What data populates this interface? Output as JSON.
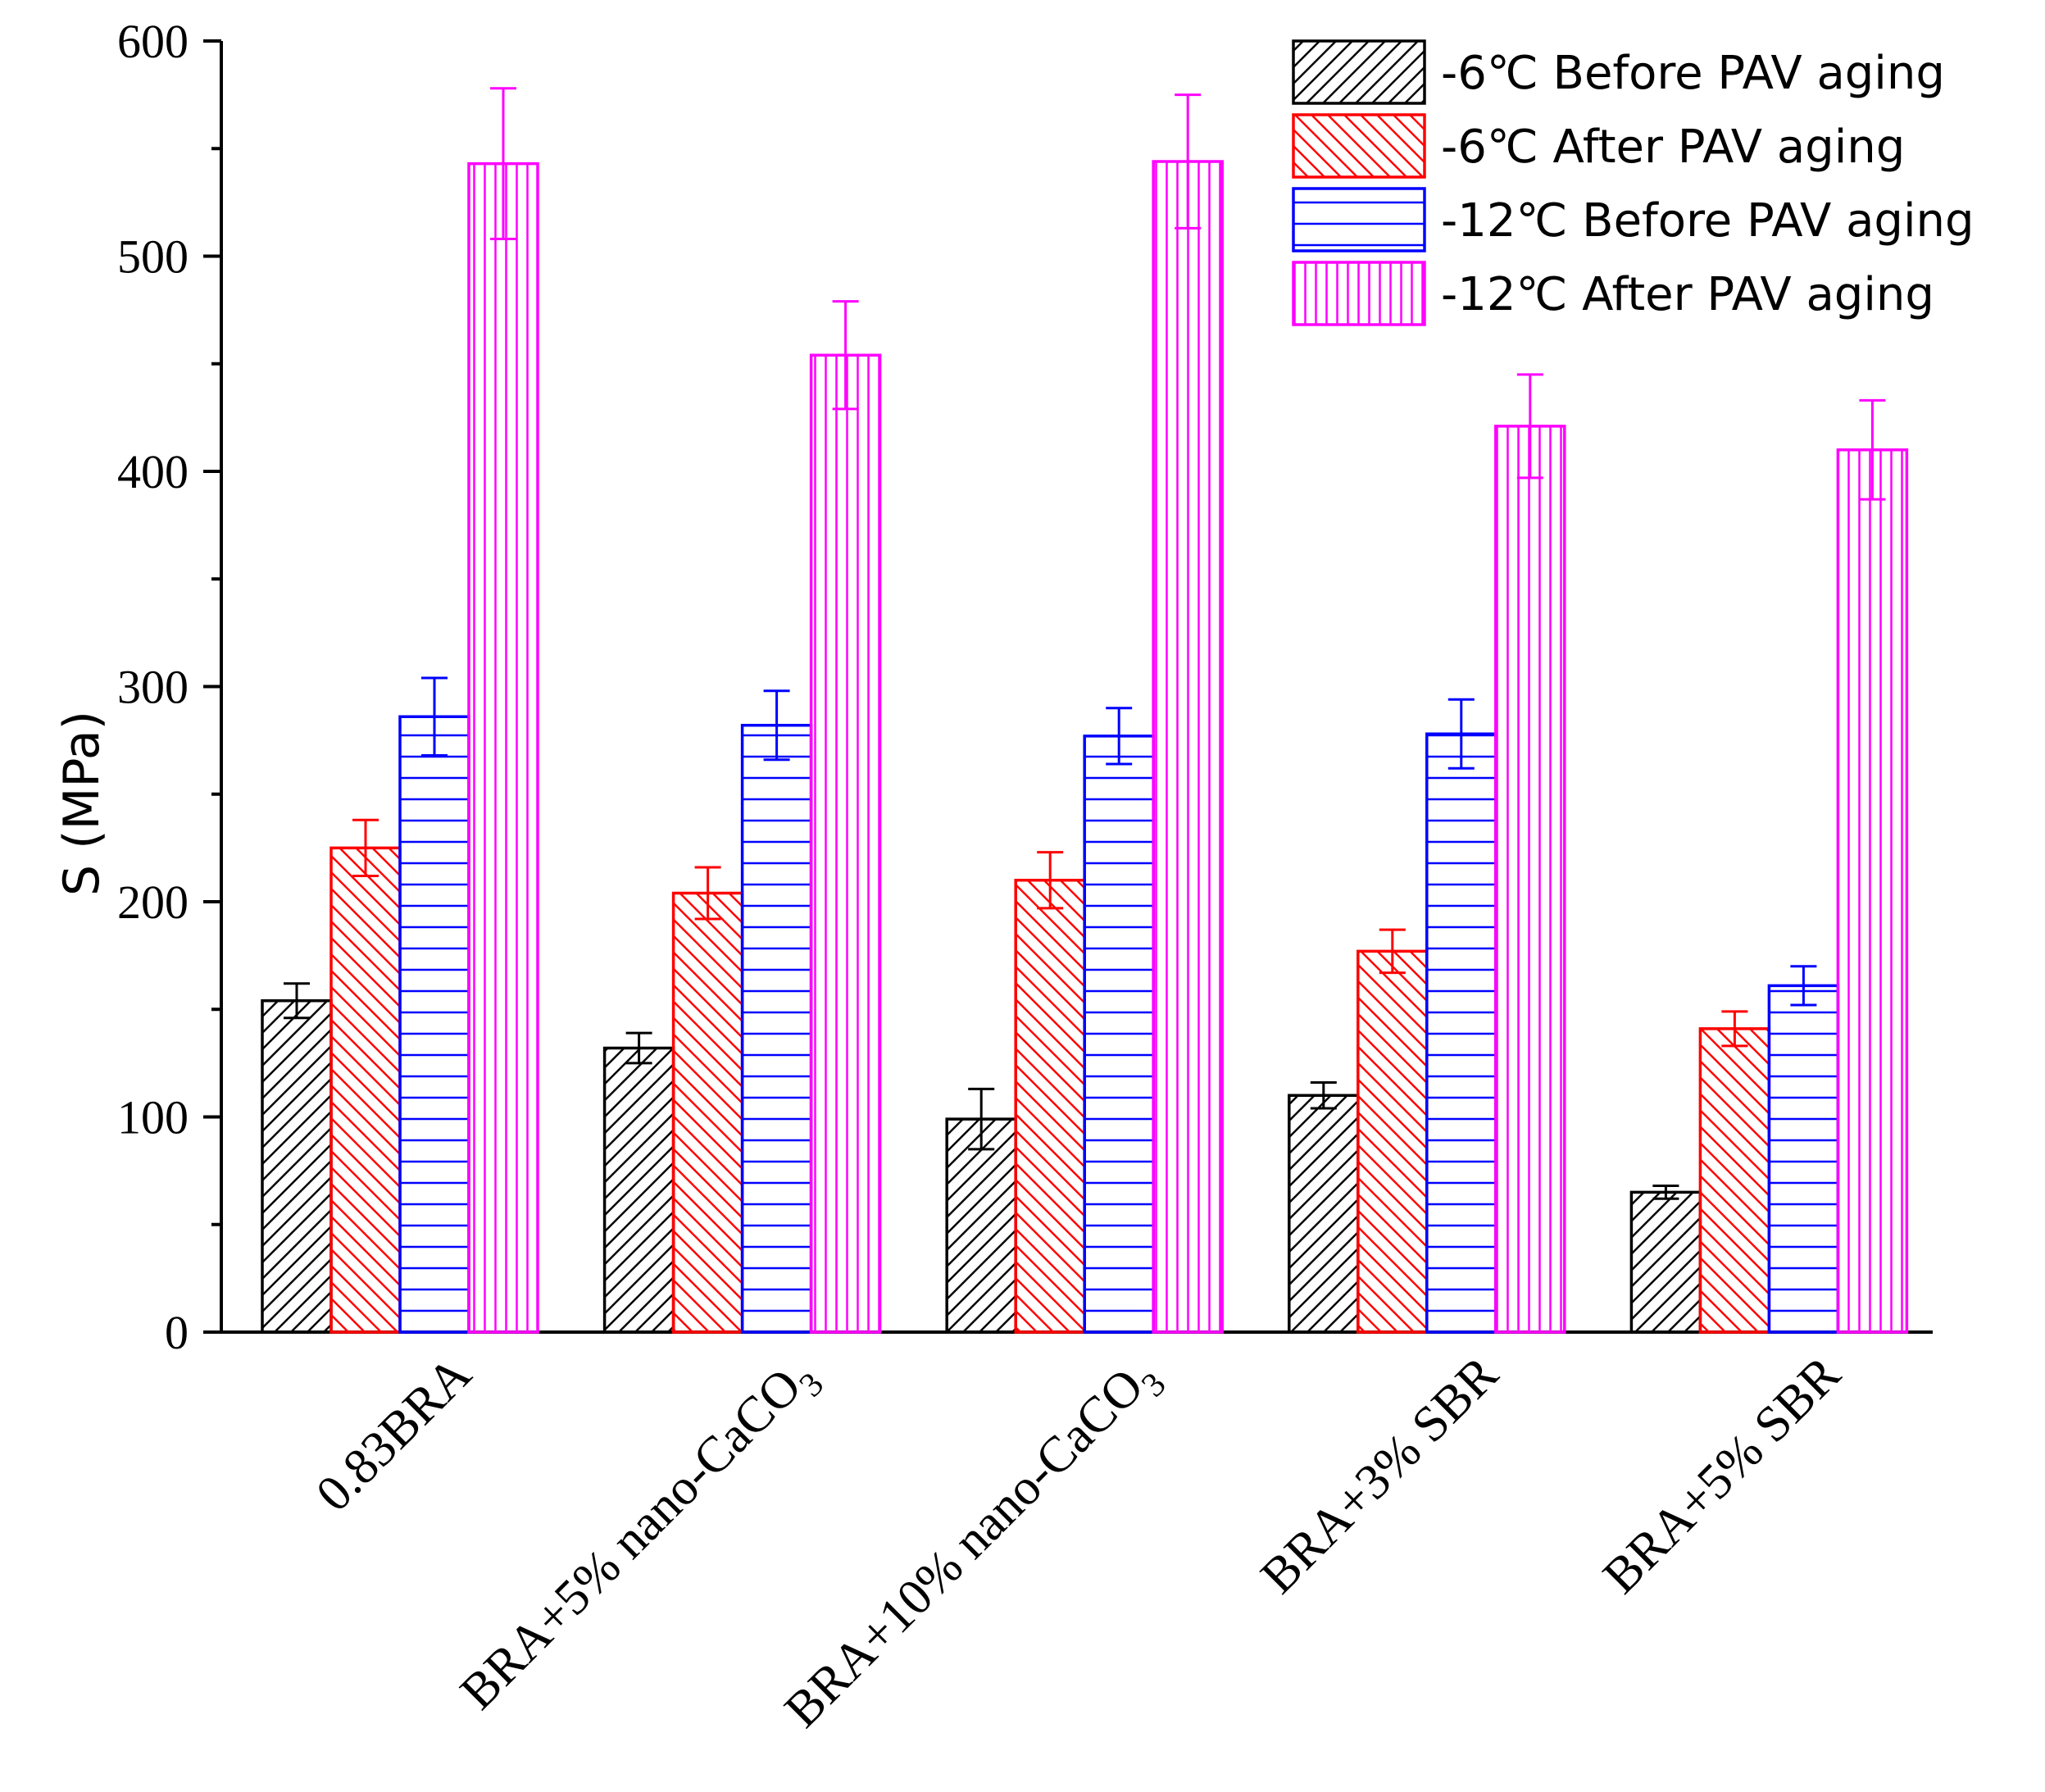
{
  "chart_data": {
    "type": "bar",
    "title": "",
    "xlabel": "",
    "ylabel": "S (MPa)",
    "ylim": [
      0,
      600
    ],
    "yticks": [
      0,
      100,
      200,
      300,
      400,
      500,
      600
    ],
    "grid": false,
    "legend_position": "top-right",
    "categories": [
      {
        "main": "0.83BRA",
        "sub": ""
      },
      {
        "main": "BRA+5% nano-CaCO",
        "sub": "3"
      },
      {
        "main": "BRA+10% nano-CaCO",
        "sub": "3"
      },
      {
        "main": "BRA+3% SBR",
        "sub": ""
      },
      {
        "main": "BRA+5% SBR",
        "sub": ""
      }
    ],
    "series": [
      {
        "name": "-6℃ Before PAV aging",
        "color": "#000000",
        "pattern": "diagonal-right",
        "values": [
          154,
          132,
          99,
          110,
          65
        ],
        "errors": [
          8,
          7,
          14,
          6,
          3
        ]
      },
      {
        "name": "-6℃ After PAV aging",
        "color": "#ff0000",
        "pattern": "diagonal-left",
        "values": [
          225,
          204,
          210,
          177,
          141
        ],
        "errors": [
          13,
          12,
          13,
          10,
          8
        ]
      },
      {
        "name": "-12℃ Before PAV aging",
        "color": "#0000ff",
        "pattern": "horizontal",
        "values": [
          286,
          282,
          277,
          278,
          161
        ],
        "errors": [
          18,
          16,
          13,
          16,
          9
        ]
      },
      {
        "name": "-12℃ After PAV aging",
        "color": "#ff00ff",
        "pattern": "vertical",
        "values": [
          543,
          454,
          544,
          421,
          410
        ],
        "errors": [
          35,
          25,
          31,
          24,
          23
        ]
      }
    ]
  }
}
